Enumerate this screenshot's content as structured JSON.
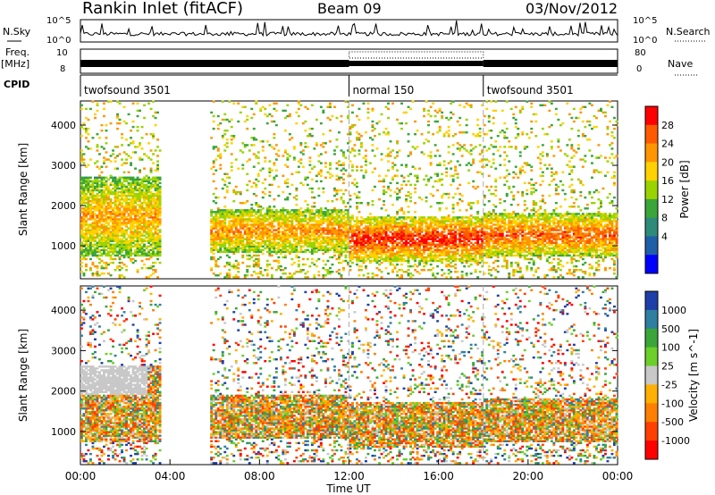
{
  "header": {
    "station": "Rankin Inlet (fitACF)",
    "beam": "Beam 09",
    "date": "03/Nov/2012"
  },
  "panels": {
    "nsky_label": "N.Sky",
    "nsky_ticks": [
      "10^5",
      "10^0"
    ],
    "nsearch_label": "N.Search",
    "nsearch_ticks": [
      "10^5",
      "10^0"
    ],
    "freq_label": "Freq.",
    "freq_unit": "[MHz]",
    "freq_ticks": [
      "10",
      "8"
    ],
    "nave_label": "Nave",
    "nave_ticks": [
      "80",
      "0"
    ],
    "cpid_label": "CPID",
    "cpid_segments": [
      {
        "label": "twofsound 3501",
        "start_h": 0,
        "end_h": 12
      },
      {
        "label": "normal 150",
        "start_h": 12,
        "end_h": 18
      },
      {
        "label": "twofsound 3501",
        "start_h": 18,
        "end_h": 24
      }
    ]
  },
  "chart_data": [
    {
      "type": "heatmap",
      "name": "power",
      "xlabel": "Time UT",
      "ylabel": "Slant Range [km]",
      "xlim": [
        0,
        24
      ],
      "ylim": [
        180,
        4600
      ],
      "yticks": [
        1000,
        2000,
        3000,
        4000
      ],
      "colorbar_label": "Power [dB]",
      "colorbar_ticks": [
        "28",
        "24",
        "20",
        "16",
        "12",
        "8",
        "4"
      ],
      "colorbar_colors": [
        "#ff0000",
        "#ff5a00",
        "#ff9600",
        "#ffd200",
        "#9ad400",
        "#3aa63a",
        "#2e8b7a",
        "#1f5fa8",
        "#0000ff"
      ],
      "bands": [
        {
          "t0": 0.0,
          "t1": 3.6,
          "r0": 700,
          "r1": 2700,
          "level": 0.55
        },
        {
          "t0": 5.8,
          "t1": 12.0,
          "r0": 800,
          "r1": 1900,
          "level": 0.6
        },
        {
          "t0": 12.0,
          "t1": 18.0,
          "r0": 600,
          "r1": 1700,
          "level": 0.8
        },
        {
          "t0": 18.0,
          "t1": 24.0,
          "r0": 700,
          "r1": 1800,
          "level": 0.7
        }
      ]
    },
    {
      "type": "heatmap",
      "name": "velocity",
      "xlabel": "Time UT",
      "ylabel": "Slant Range [km]",
      "xlim": [
        0,
        24
      ],
      "ylim": [
        180,
        4600
      ],
      "yticks": [
        1000,
        2000,
        3000,
        4000
      ],
      "colorbar_label": "Velocity [m s^-1]",
      "colorbar_ticks": [
        "1000",
        "500",
        "100",
        "25",
        "-25",
        "-100",
        "-500",
        "-1000"
      ],
      "colorbar_colors": [
        "#1e3fa8",
        "#2f7fa0",
        "#3aa63a",
        "#6ccf2a",
        "#c8c8c8",
        "#ffb000",
        "#ff8000",
        "#ff4000",
        "#ff0000"
      ],
      "bands": [
        {
          "t0": 0.0,
          "t1": 3.6,
          "r0": 700,
          "r1": 2600,
          "level": 0.55
        },
        {
          "t0": 5.8,
          "t1": 12.0,
          "r0": 800,
          "r1": 1900,
          "level": 0.45
        },
        {
          "t0": 12.0,
          "t1": 18.0,
          "r0": 600,
          "r1": 1700,
          "level": 0.75
        },
        {
          "t0": 18.0,
          "t1": 24.0,
          "r0": 700,
          "r1": 1800,
          "level": 0.7
        }
      ]
    }
  ],
  "x_axis": {
    "ticks": [
      "00:00",
      "04:00",
      "08:00",
      "12:00",
      "16:00",
      "20:00",
      "00:00"
    ],
    "label": "Time UT"
  }
}
